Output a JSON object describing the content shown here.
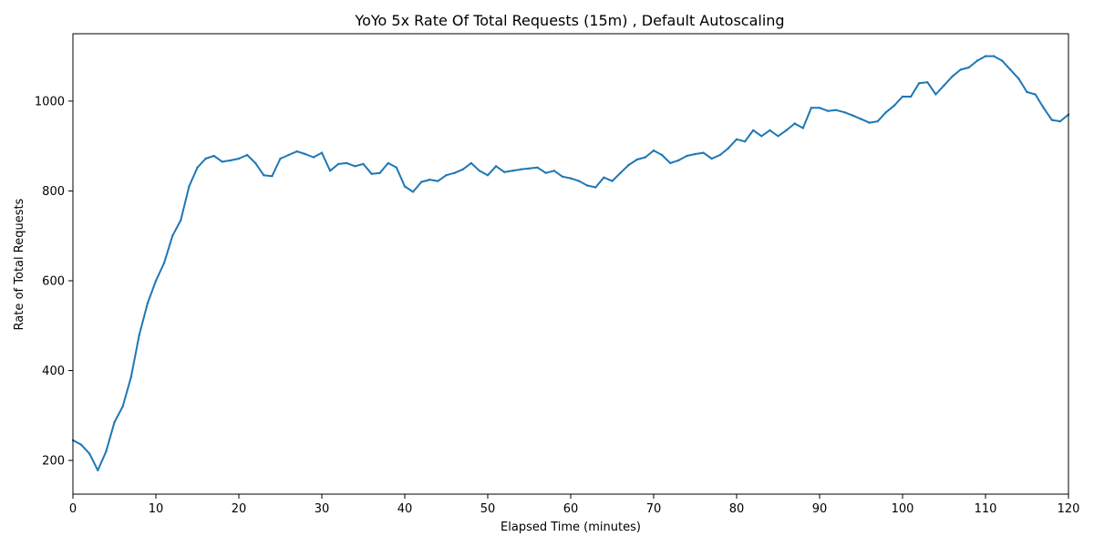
{
  "chart_data": {
    "type": "line",
    "title": "YoYo 5x Rate Of Total Requests (15m) , Default Autoscaling",
    "xlabel": "Elapsed Time (minutes)",
    "ylabel": "Rate of Total Requests",
    "xlim": [
      0,
      120
    ],
    "ylim": [
      125,
      1150
    ],
    "xticks": [
      0,
      10,
      20,
      30,
      40,
      50,
      60,
      70,
      80,
      90,
      100,
      110,
      120
    ],
    "yticks": [
      200,
      400,
      600,
      800,
      1000
    ],
    "grid": false,
    "legend": "none",
    "series": [
      {
        "color": "#1f77b4",
        "x": [
          0,
          1,
          2,
          3,
          4,
          5,
          6,
          7,
          8,
          9,
          10,
          11,
          12,
          13,
          14,
          15,
          16,
          17,
          18,
          19,
          20,
          21,
          22,
          23,
          24,
          25,
          26,
          27,
          28,
          29,
          30,
          31,
          32,
          33,
          34,
          35,
          36,
          37,
          38,
          39,
          40,
          41,
          42,
          43,
          44,
          45,
          46,
          47,
          48,
          49,
          50,
          51,
          52,
          53,
          54,
          55,
          56,
          57,
          58,
          59,
          60,
          61,
          62,
          63,
          64,
          65,
          66,
          67,
          68,
          69,
          70,
          71,
          72,
          73,
          74,
          75,
          76,
          77,
          78,
          79,
          80,
          81,
          82,
          83,
          84,
          85,
          86,
          87,
          88,
          89,
          90,
          91,
          92,
          93,
          94,
          95,
          96,
          97,
          98,
          99,
          100,
          101,
          102,
          103,
          104,
          105,
          106,
          107,
          108,
          109,
          110,
          111,
          112,
          113,
          114,
          115,
          116,
          117,
          118,
          119,
          120
        ],
        "y": [
          245,
          235,
          215,
          178,
          220,
          285,
          320,
          385,
          480,
          550,
          600,
          640,
          700,
          735,
          810,
          852,
          872,
          878,
          865,
          868,
          872,
          880,
          862,
          835,
          833,
          872,
          880,
          888,
          882,
          875,
          885,
          845,
          860,
          862,
          855,
          860,
          838,
          840,
          862,
          852,
          810,
          798,
          820,
          825,
          822,
          835,
          840,
          848,
          862,
          845,
          835,
          855,
          842,
          845,
          848,
          850,
          852,
          840,
          845,
          832,
          828,
          822,
          812,
          808,
          830,
          822,
          840,
          858,
          870,
          875,
          890,
          880,
          862,
          868,
          878,
          882,
          885,
          872,
          880,
          895,
          915,
          910,
          935,
          922,
          935,
          922,
          935,
          950,
          940,
          985,
          985,
          978,
          980,
          975,
          968,
          960,
          952,
          955,
          975,
          990,
          1010,
          1010,
          1040,
          1042,
          1015,
          1035,
          1055,
          1070,
          1075,
          1090,
          1100,
          1100,
          1090,
          1070,
          1050,
          1020,
          1015,
          985,
          958,
          955,
          970
        ]
      }
    ]
  }
}
